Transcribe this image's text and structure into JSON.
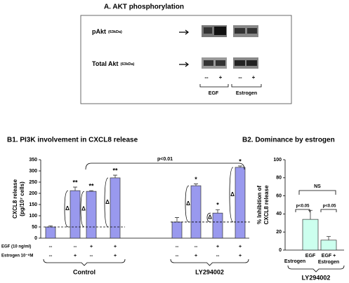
{
  "blot": {
    "title": "A. AKT phosphorylation",
    "rows": [
      {
        "label": "pAkt",
        "unit": "(63kDa)"
      },
      {
        "label": "Total Akt",
        "unit": "(63kDa)"
      }
    ],
    "lanes": [
      "--",
      "+",
      "--",
      "+"
    ],
    "groups": [
      "EGF",
      "Estrogen"
    ]
  },
  "chart_data": [
    {
      "type": "bar",
      "title": "B1. PI3K involvement in CXCL8 release",
      "ylabel": [
        "CXCL8 release",
        "(pg/10⁷ cells)"
      ],
      "ylim": [
        0,
        350
      ],
      "yticks": [
        0,
        50,
        100,
        150,
        200,
        250,
        300,
        350
      ],
      "color": "#9999ee",
      "values": [
        50,
        212,
        209,
        269,
        72,
        234,
        112,
        316
      ],
      "errors": [
        5,
        16,
        3,
        12,
        20,
        8,
        15,
        6
      ],
      "significance": [
        null,
        "**",
        "**",
        "**",
        null,
        "*",
        "*",
        "*"
      ],
      "delta": [
        null,
        "Δ",
        "Δ",
        "Δ",
        null,
        "Δ",
        "Δ",
        "Δ"
      ],
      "conditions": [
        {
          "label": "EGF (10 ng/ml)",
          "values": [
            "--",
            "--",
            "+",
            "+",
            "--",
            "--",
            "+",
            "+"
          ]
        },
        {
          "label": "Estrogen 10⁻⁸M",
          "values": [
            "--",
            "+",
            "--",
            "+",
            "--",
            "+",
            "--",
            "+"
          ]
        }
      ],
      "groups": [
        "Control",
        "LY294002"
      ],
      "comparison": "p<0.01"
    },
    {
      "type": "bar",
      "title": "B2. Dominance by estrogen",
      "ylabel": [
        "% Inhibition of",
        "CXCL8 release"
      ],
      "ylim": [
        0,
        100
      ],
      "yticks": [
        0,
        20,
        40,
        60,
        80,
        100
      ],
      "color": "#ccffee",
      "categories": [
        "Estrogen",
        "EGF",
        "EGF + Estrogen"
      ],
      "values": [
        0,
        34,
        11
      ],
      "errors": [
        null,
        10,
        4
      ],
      "annotations": [
        "NS",
        "p<0.05",
        "p<0.05"
      ],
      "group": "LY294002"
    }
  ]
}
